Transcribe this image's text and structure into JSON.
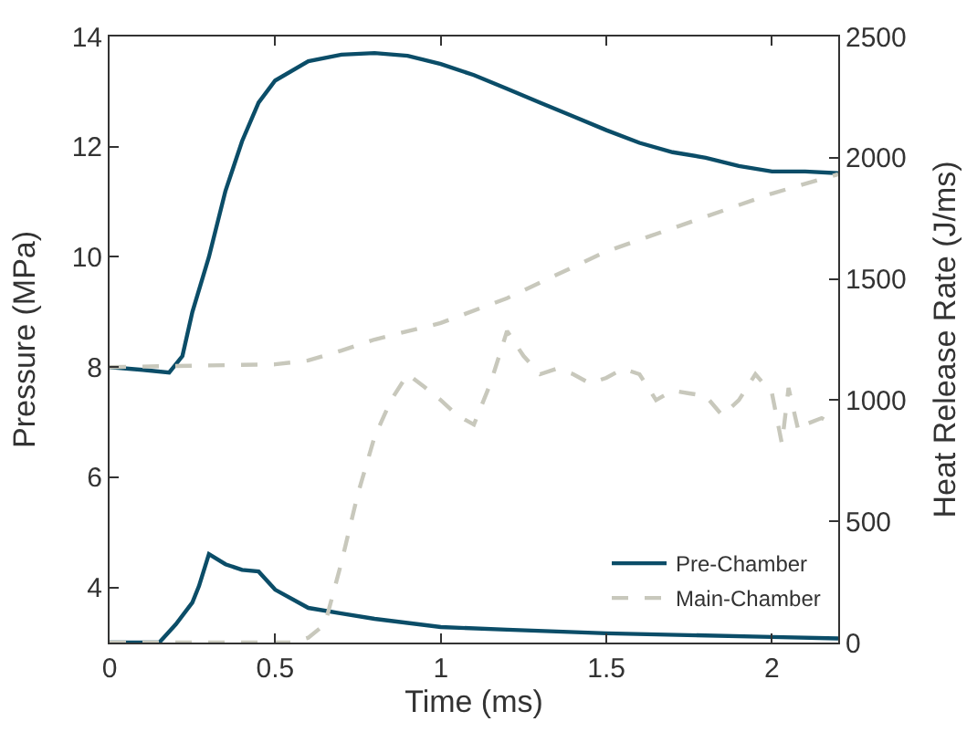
{
  "chart_data": {
    "type": "line",
    "xlabel": "Time (ms)",
    "ylabel": "Pressure (MPa)",
    "y2label": "Heat Release Rate (J/ms)",
    "xlim": [
      0,
      2.2
    ],
    "xticks": [
      0,
      0.5,
      1,
      1.5,
      2
    ],
    "ylim": [
      3,
      14
    ],
    "yticks": [
      4,
      6,
      8,
      10,
      12,
      14
    ],
    "y2lim": [
      0,
      2500
    ],
    "y2ticks": [
      0,
      500,
      1000,
      1500,
      2000,
      2500
    ],
    "legend": "bottom right",
    "marker": "none",
    "series": [
      {
        "name": "Pre-Chamber",
        "color": "#0b4d68",
        "line_style": "solid",
        "x": [
          0,
          0.1,
          0.18,
          0.22,
          0.25,
          0.3,
          0.35,
          0.4,
          0.45,
          0.5,
          0.6,
          0.7,
          0.8,
          0.9,
          1.0,
          1.1,
          1.2,
          1.3,
          1.4,
          1.5,
          1.6,
          1.7,
          1.8,
          1.9,
          2.0,
          2.1,
          2.2
        ],
        "values": [
          8,
          7.95,
          7.9,
          8.2,
          9,
          10,
          11.2,
          12.1,
          12.8,
          13.2,
          13.55,
          13.67,
          13.7,
          13.65,
          13.5,
          13.3,
          13.05,
          12.8,
          12.55,
          12.3,
          12.07,
          11.9,
          11.8,
          11.65,
          11.55,
          11.55,
          11.52
        ]
      },
      {
        "name": "Main-Chamber",
        "color": "#c8c8bc",
        "line_style": "dashed",
        "x": [
          0,
          0.5,
          0.6,
          0.7,
          0.8,
          0.9,
          1.0,
          1.2,
          1.5,
          2.0,
          2.2
        ],
        "values": [
          8,
          8.05,
          8.12,
          8.3,
          8.5,
          8.65,
          8.8,
          9.25,
          10.1,
          11.15,
          11.5
        ]
      },
      {
        "color": "#0b4d68",
        "line_style": "solid",
        "axis": "y2",
        "x": [
          0,
          0.15,
          0.2,
          0.25,
          0.27,
          0.3,
          0.35,
          0.4,
          0.45,
          0.5,
          0.6,
          0.7,
          0.8,
          1.0,
          1.2,
          1.5,
          2.0,
          2.2
        ],
        "values": [
          0,
          0,
          75,
          165,
          233,
          365,
          323,
          300,
          293,
          218,
          143,
          120,
          98,
          64,
          53,
          38,
          23,
          17
        ]
      },
      {
        "color": "#c8c8bc",
        "line_style": "dashed",
        "axis": "y2",
        "x": [
          0,
          0.55,
          0.6,
          0.65,
          0.7,
          0.75,
          0.8,
          0.85,
          0.9,
          0.95,
          1.0,
          1.05,
          1.1,
          1.15,
          1.2,
          1.25,
          1.3,
          1.35,
          1.4,
          1.45,
          1.5,
          1.55,
          1.6,
          1.65,
          1.7,
          1.75,
          1.8,
          1.85,
          1.9,
          1.95,
          2.0,
          2.03,
          2.05,
          2.08,
          2.1,
          2.15,
          2.2
        ],
        "values": [
          0,
          0,
          20,
          75,
          330,
          615,
          848,
          1000,
          1107,
          1055,
          1000,
          937,
          899,
          1069,
          1285,
          1182,
          1107,
          1130,
          1107,
          1069,
          1092,
          1130,
          1107,
          1000,
          1039,
          1028,
          1017,
          937,
          1000,
          1107,
          1028,
          820,
          1050,
          873,
          899,
          926,
          889
        ]
      }
    ]
  }
}
